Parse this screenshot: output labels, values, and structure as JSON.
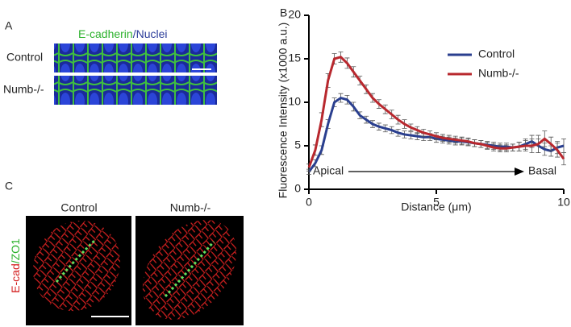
{
  "panel_a": {
    "label": "A",
    "title_green": "E-cadherin",
    "title_blue": "/Nuclei",
    "rows": [
      "Control",
      "Numb-/-"
    ]
  },
  "panel_c": {
    "label": "C",
    "columns": [
      "Control",
      "Numb-/-"
    ],
    "side_red": "E-cad",
    "side_green": "/ZO1"
  },
  "chart_data": {
    "type": "line",
    "panel_label": "B",
    "x_label": "Distance (μm)",
    "y_label": "Fluorescence Intensity (x1000 a.u.)",
    "annotations": [
      "Apical",
      "Basal"
    ],
    "x": [
      0,
      0.25,
      0.5,
      0.75,
      1,
      1.25,
      1.5,
      1.75,
      2,
      2.25,
      2.5,
      2.75,
      3,
      3.25,
      3.5,
      3.75,
      4,
      4.25,
      4.5,
      4.75,
      5,
      5.25,
      5.5,
      5.75,
      6,
      6.25,
      6.5,
      6.75,
      7,
      7.25,
      7.5,
      7.75,
      8,
      8.25,
      8.5,
      8.75,
      9,
      9.25,
      9.5,
      9.75,
      10
    ],
    "series": [
      {
        "name": "Control",
        "color": "#2a3f8f",
        "values": [
          2,
          3,
          4.5,
          7.5,
          10,
          10.5,
          10.3,
          9.5,
          8.5,
          8,
          7.5,
          7.2,
          7,
          6.8,
          6.5,
          6.3,
          6.2,
          6.1,
          6,
          6,
          5.8,
          5.7,
          5.6,
          5.5,
          5.5,
          5.4,
          5.3,
          5.2,
          5.1,
          5,
          4.9,
          4.9,
          4.8,
          4.9,
          5.2,
          5.5,
          5,
          4.6,
          4.4,
          4.8,
          5
        ],
        "errors": [
          0.3,
          0.4,
          0.5,
          0.5,
          0.5,
          0.5,
          0.5,
          0.5,
          0.4,
          0.4,
          0.4,
          0.4,
          0.4,
          0.4,
          0.4,
          0.4,
          0.4,
          0.4,
          0.4,
          0.4,
          0.4,
          0.4,
          0.4,
          0.4,
          0.4,
          0.4,
          0.4,
          0.4,
          0.4,
          0.4,
          0.4,
          0.4,
          0.4,
          0.5,
          0.6,
          0.7,
          0.8,
          0.7,
          0.6,
          0.7,
          0.8
        ]
      },
      {
        "name": "Numb-/-",
        "color": "#b8282e",
        "values": [
          2.5,
          4.5,
          8,
          12.5,
          15,
          15.2,
          14.5,
          13.5,
          12.5,
          11.5,
          10.5,
          9.8,
          9.2,
          8.6,
          8,
          7.5,
          7.1,
          6.8,
          6.5,
          6.3,
          6.1,
          5.9,
          5.8,
          5.7,
          5.6,
          5.5,
          5.3,
          5.2,
          5,
          4.8,
          4.7,
          4.7,
          4.8,
          4.9,
          5,
          5,
          5.2,
          5.8,
          5.2,
          4.5,
          3.5
        ],
        "errors": [
          0.4,
          0.6,
          0.8,
          0.8,
          0.6,
          0.6,
          0.6,
          0.6,
          0.5,
          0.5,
          0.5,
          0.5,
          0.5,
          0.5,
          0.5,
          0.5,
          0.4,
          0.4,
          0.4,
          0.4,
          0.4,
          0.4,
          0.4,
          0.4,
          0.4,
          0.4,
          0.4,
          0.4,
          0.4,
          0.4,
          0.4,
          0.4,
          0.4,
          0.5,
          0.6,
          0.8,
          1,
          0.9,
          0.8,
          0.8,
          0.7
        ]
      }
    ],
    "xlim": [
      0,
      10
    ],
    "xticks": [
      0,
      5,
      10
    ],
    "ylim": [
      0,
      20
    ],
    "yticks": [
      0,
      5,
      10,
      15,
      20
    ],
    "legend": "upper right"
  }
}
